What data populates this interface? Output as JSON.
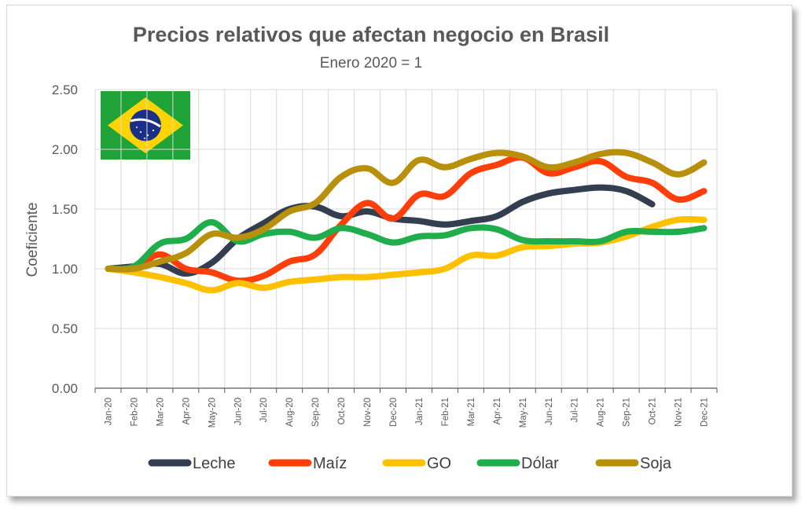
{
  "chart_data": {
    "type": "line",
    "title": "Precios relativos que afectan negocio en Brasil",
    "subtitle": "Enero 2020 = 1",
    "xlabel": "",
    "ylabel": "Coeficiente",
    "ylim": [
      0,
      2.5
    ],
    "yticks": [
      "0.00",
      "0.50",
      "1.00",
      "1.50",
      "2.00",
      "2.50"
    ],
    "grid": true,
    "legend": "bottom",
    "categories": [
      "Jan-20",
      "Feb-20",
      "Mar-20",
      "Apr-20",
      "May-20",
      "Jun-20",
      "Jul-20",
      "Aug-20",
      "Sep-20",
      "Oct-20",
      "Nov-20",
      "Dec-20",
      "Jan-21",
      "Feb-21",
      "Mar-21",
      "Apr-21",
      "May-21",
      "Jun-21",
      "Jul-21",
      "Aug-21",
      "Sep-21",
      "Oct-21",
      "Nov-21",
      "Dec-21"
    ],
    "series": [
      {
        "name": "Leche",
        "color": "#333f50",
        "values": [
          1.0,
          1.02,
          1.04,
          0.96,
          1.05,
          1.25,
          1.38,
          1.5,
          1.52,
          1.44,
          1.48,
          1.42,
          1.4,
          1.37,
          1.4,
          1.44,
          1.56,
          1.63,
          1.66,
          1.68,
          1.65,
          1.54,
          null,
          null
        ]
      },
      {
        "name": "Maíz",
        "color": "#ff3e0a",
        "values": [
          1.0,
          1.0,
          1.12,
          1.0,
          0.97,
          0.9,
          0.94,
          1.06,
          1.12,
          1.37,
          1.55,
          1.42,
          1.62,
          1.61,
          1.8,
          1.87,
          1.93,
          1.8,
          1.85,
          1.9,
          1.77,
          1.72,
          1.58,
          1.65
        ]
      },
      {
        "name": "GO",
        "color": "#ffc000",
        "values": [
          1.0,
          0.97,
          0.93,
          0.88,
          0.82,
          0.88,
          0.84,
          0.89,
          0.91,
          0.93,
          0.93,
          0.95,
          0.97,
          1.0,
          1.11,
          1.11,
          1.18,
          1.19,
          1.21,
          1.22,
          1.27,
          1.35,
          1.41,
          1.41
        ]
      },
      {
        "name": "Dólar",
        "color": "#1fae4b",
        "values": [
          1.0,
          1.02,
          1.21,
          1.25,
          1.39,
          1.23,
          1.29,
          1.31,
          1.26,
          1.34,
          1.29,
          1.22,
          1.27,
          1.28,
          1.34,
          1.33,
          1.24,
          1.23,
          1.23,
          1.23,
          1.31,
          1.31,
          1.31,
          1.34
        ]
      },
      {
        "name": "Soja",
        "color": "#b8900c",
        "values": [
          1.0,
          1.0,
          1.06,
          1.13,
          1.29,
          1.26,
          1.33,
          1.48,
          1.55,
          1.77,
          1.84,
          1.72,
          1.91,
          1.85,
          1.92,
          1.97,
          1.94,
          1.85,
          1.89,
          1.96,
          1.97,
          1.89,
          1.79,
          1.89
        ]
      }
    ]
  }
}
